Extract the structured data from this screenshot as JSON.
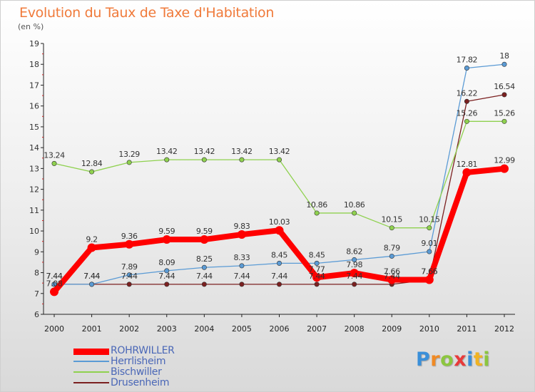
{
  "header": {
    "title": "Evolution du Taux de Taxe d'Habitation",
    "subtitle": "(en %)"
  },
  "logo": {
    "text": "Proxiti",
    "letters": [
      {
        "ch": "P",
        "color": "#3a8fd9"
      },
      {
        "ch": "r",
        "color": "#f08a24"
      },
      {
        "ch": "o",
        "color": "#8cc63f"
      },
      {
        "ch": "x",
        "color": "#e83a3a"
      },
      {
        "ch": "i",
        "color": "#3a8fd9"
      },
      {
        "ch": "t",
        "color": "#f0b323"
      },
      {
        "ch": "i",
        "color": "#8cc63f"
      }
    ]
  },
  "chart_data": {
    "type": "line",
    "x": [
      "2000",
      "2001",
      "2002",
      "2003",
      "2004",
      "2005",
      "2006",
      "2007",
      "2008",
      "2009",
      "2010",
      "2011",
      "2012"
    ],
    "ylim": [
      6,
      19
    ],
    "yticks": [
      "6",
      "7",
      "8",
      "9",
      "10",
      "11",
      "12",
      "13",
      "14",
      "15",
      "16",
      "17",
      "18",
      "19"
    ],
    "grid": false,
    "legend_position": "bottom-left",
    "series": [
      {
        "name": "ROHRWILLER",
        "color": "#ff0000",
        "stroke": "thick",
        "values": [
          7.08,
          9.2,
          9.36,
          9.59,
          9.59,
          9.83,
          10.03,
          7.77,
          7.98,
          7.66,
          7.66,
          12.81,
          12.99
        ],
        "labels": [
          "7.08",
          "9.2",
          "9.36",
          "9.59",
          "9.59",
          "9.83",
          "10.03",
          "7.77",
          "7.98",
          "7.66",
          "7.66",
          "12.81",
          "12.99"
        ]
      },
      {
        "name": "Herrlisheim",
        "color": "#5b9bd5",
        "stroke": "thin",
        "values": [
          7.44,
          7.44,
          7.89,
          8.09,
          8.25,
          8.33,
          8.45,
          8.45,
          8.62,
          8.79,
          9.01,
          17.82,
          18
        ],
        "labels": [
          "7.44",
          "7.44",
          "7.89",
          "8.09",
          "8.25",
          "8.33",
          "8.45",
          "8.45",
          "8.62",
          "8.79",
          "9.01",
          "17.82",
          "18"
        ]
      },
      {
        "name": "Bischwiller",
        "color": "#8fd14f",
        "stroke": "thin",
        "values": [
          13.24,
          12.84,
          13.29,
          13.42,
          13.42,
          13.42,
          13.42,
          10.86,
          10.86,
          10.15,
          10.15,
          15.26,
          15.26
        ],
        "labels": [
          "13.24",
          "12.84",
          "13.29",
          "13.42",
          "13.42",
          "13.42",
          "13.42",
          "10.86",
          "10.86",
          "10.15",
          "10.15",
          "15.26",
          "15.26"
        ]
      },
      {
        "name": "Drusenheim",
        "color": "#7b2020",
        "stroke": "thin",
        "values": [
          7.44,
          7.44,
          7.44,
          7.44,
          7.44,
          7.44,
          7.44,
          7.44,
          7.44,
          7.44,
          7.66,
          16.22,
          16.54
        ],
        "labels": [
          "7.44",
          "7.44",
          "7.44",
          "7.44",
          "7.44",
          "7.44",
          "7.44",
          "7.44",
          "7.44",
          "7.44",
          "7.66",
          "16.22",
          "16.54"
        ]
      }
    ]
  }
}
